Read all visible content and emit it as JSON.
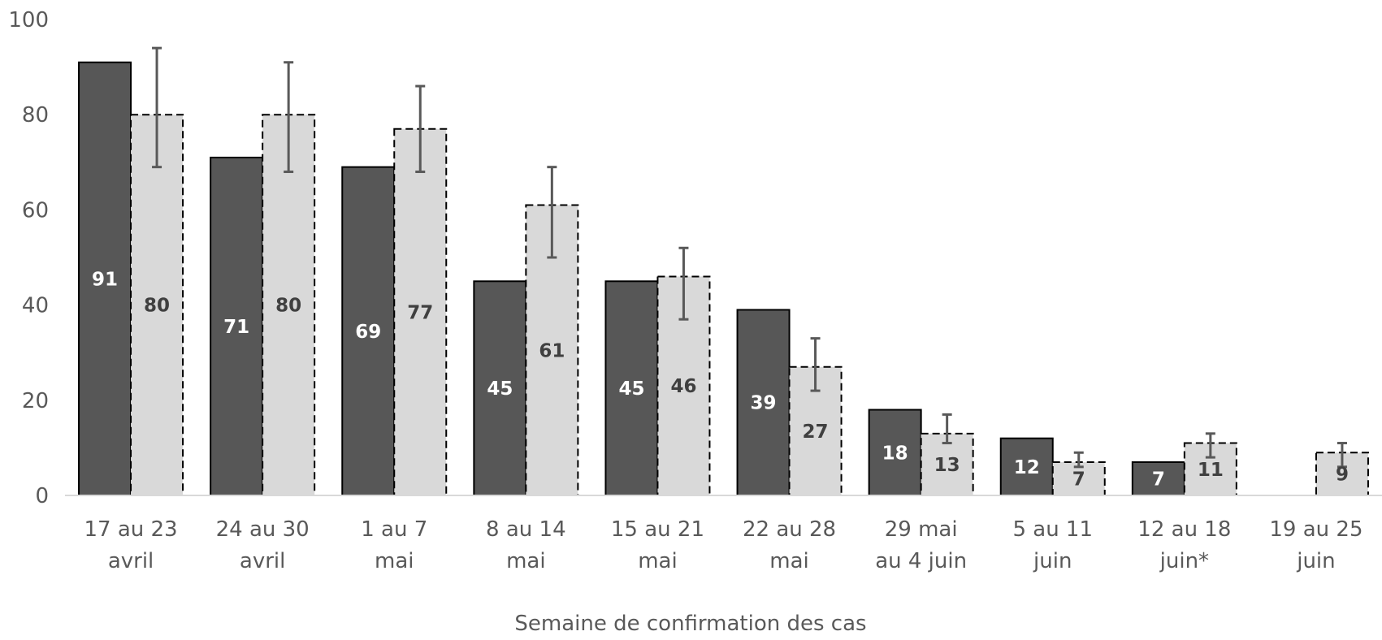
{
  "chart_data": {
    "type": "bar",
    "xlabel": "Semaine de confirmation des cas",
    "ylabel": "",
    "ylim": [
      0,
      100
    ],
    "yticks": [
      0,
      20,
      40,
      60,
      80,
      100
    ],
    "grid": false,
    "categories": [
      [
        "17 au 23",
        "avril"
      ],
      [
        "24 au 30",
        "avril"
      ],
      [
        "1 au 7",
        "mai"
      ],
      [
        "8 au 14",
        "mai"
      ],
      [
        "15 au 21",
        "mai"
      ],
      [
        "22 au 28",
        "mai"
      ],
      [
        "29 mai",
        "au 4 juin"
      ],
      [
        "5 au 11",
        "juin"
      ],
      [
        "12 au 18",
        "juin*"
      ],
      [
        "19 au 25",
        "juin"
      ]
    ],
    "series": [
      {
        "values": [
          91,
          71,
          69,
          45,
          45,
          39,
          18,
          12,
          7,
          null
        ],
        "color": "#575757",
        "label_color": "#ffffff",
        "border": "solid"
      },
      {
        "values": [
          80,
          80,
          77,
          61,
          46,
          27,
          13,
          7,
          11,
          9
        ],
        "error_low": [
          69,
          68,
          68,
          50,
          37,
          22,
          11,
          6,
          8,
          6
        ],
        "error_high": [
          94,
          91,
          86,
          69,
          52,
          33,
          17,
          9,
          13,
          11
        ],
        "color": "#d9d9d9",
        "label_color": "#404040",
        "border": "dashed"
      }
    ]
  }
}
